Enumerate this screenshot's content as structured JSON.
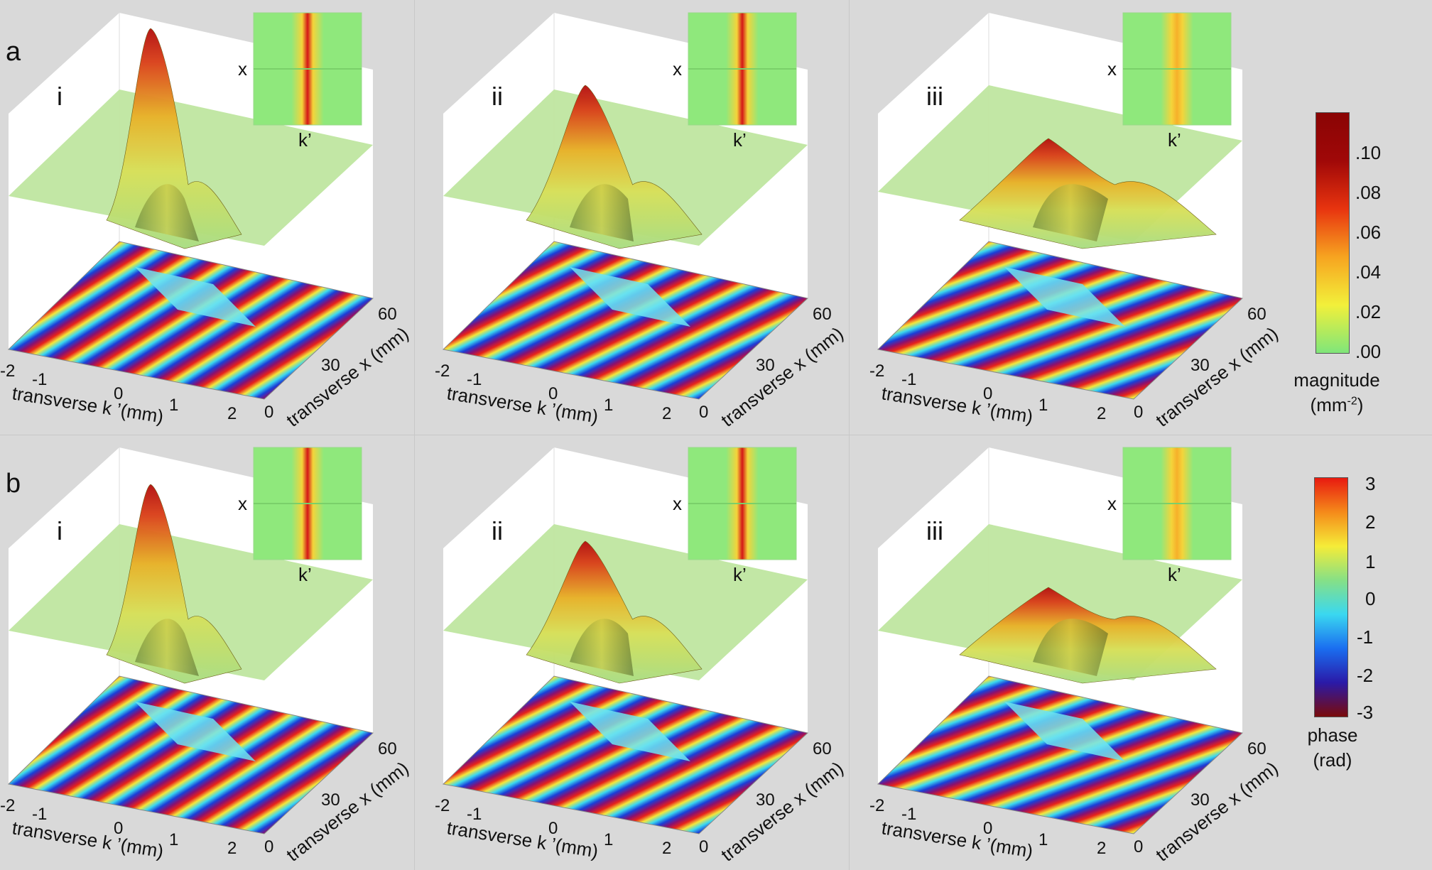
{
  "rows": [
    {
      "letter": "a",
      "panels": [
        {
          "roman": "i"
        },
        {
          "roman": "ii"
        },
        {
          "roman": "iii"
        }
      ]
    },
    {
      "letter": "b",
      "panels": [
        {
          "roman": "i"
        },
        {
          "roman": "ii"
        },
        {
          "roman": "iii"
        }
      ]
    }
  ],
  "inset": {
    "y_label": "x",
    "x_label": "k’"
  },
  "axes": {
    "k_label": "transverse k ’(mm)",
    "x_label": "transverse x (mm)",
    "k_ticks": [
      "-2",
      "-1",
      "0",
      "1",
      "2"
    ],
    "x_ticks": [
      "0",
      "30",
      "60"
    ]
  },
  "colorbar_magnitude": {
    "ticks": [
      ".00",
      ".02",
      ".04",
      ".06",
      ".08",
      ".10"
    ],
    "label_line1": "magnitude",
    "label_line2": "(mm",
    "label_sup": "-2",
    "label_close": ")",
    "colors": [
      "#7fe67a",
      "#f2f03a",
      "#f7a420",
      "#e8340f",
      "#a00808",
      "#8a0404"
    ]
  },
  "colorbar_phase": {
    "ticks": [
      "-3",
      "-2",
      "-1",
      "0",
      "1",
      "2",
      "3"
    ],
    "label_line1": "phase",
    "label_line2": "(rad)",
    "colors": [
      "#7a0a0a",
      "#2a1aa8",
      "#1a6ef0",
      "#3ad8f0",
      "#86e086",
      "#f5ec38",
      "#f58a1a",
      "#e81a10"
    ]
  }
}
